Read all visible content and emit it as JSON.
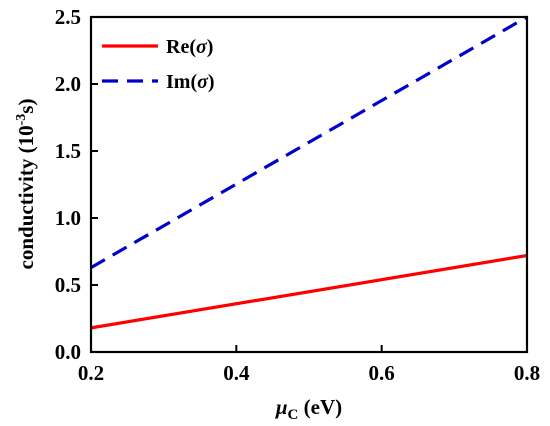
{
  "chart_data": {
    "type": "line",
    "xlabel_symbol": "μ",
    "xlabel_sub": "C",
    "xlabel_unit": " (eV)",
    "ylabel_main": "conductivity (10",
    "ylabel_sup": "-3",
    "ylabel_unit": "s)",
    "xlim": [
      0.2,
      0.8
    ],
    "ylim": [
      0.0,
      2.5
    ],
    "xticks": [
      0.2,
      0.4,
      0.6,
      0.8
    ],
    "xtick_labels": [
      "0.2",
      "0.4",
      "0.6",
      "0.8"
    ],
    "yticks": [
      0.0,
      0.5,
      1.0,
      1.5,
      2.0,
      2.5
    ],
    "ytick_labels": [
      "0.0",
      "0.5",
      "1.0",
      "1.5",
      "2.0",
      "2.5"
    ],
    "grid": false,
    "legend_position": "top-left",
    "series": [
      {
        "name": "Re(σ)",
        "name_prefix": "Re(",
        "name_symbol": "σ",
        "name_suffix": ")",
        "color": "#ff0000",
        "style": "solid",
        "x": [
          0.2,
          0.8
        ],
        "y": [
          0.18,
          0.72
        ]
      },
      {
        "name": "Im(σ)",
        "name_prefix": "Im(",
        "name_symbol": "σ",
        "name_suffix": ")",
        "color": "#0000cc",
        "style": "dashed",
        "x": [
          0.2,
          0.8
        ],
        "y": [
          0.63,
          2.5
        ]
      }
    ]
  }
}
